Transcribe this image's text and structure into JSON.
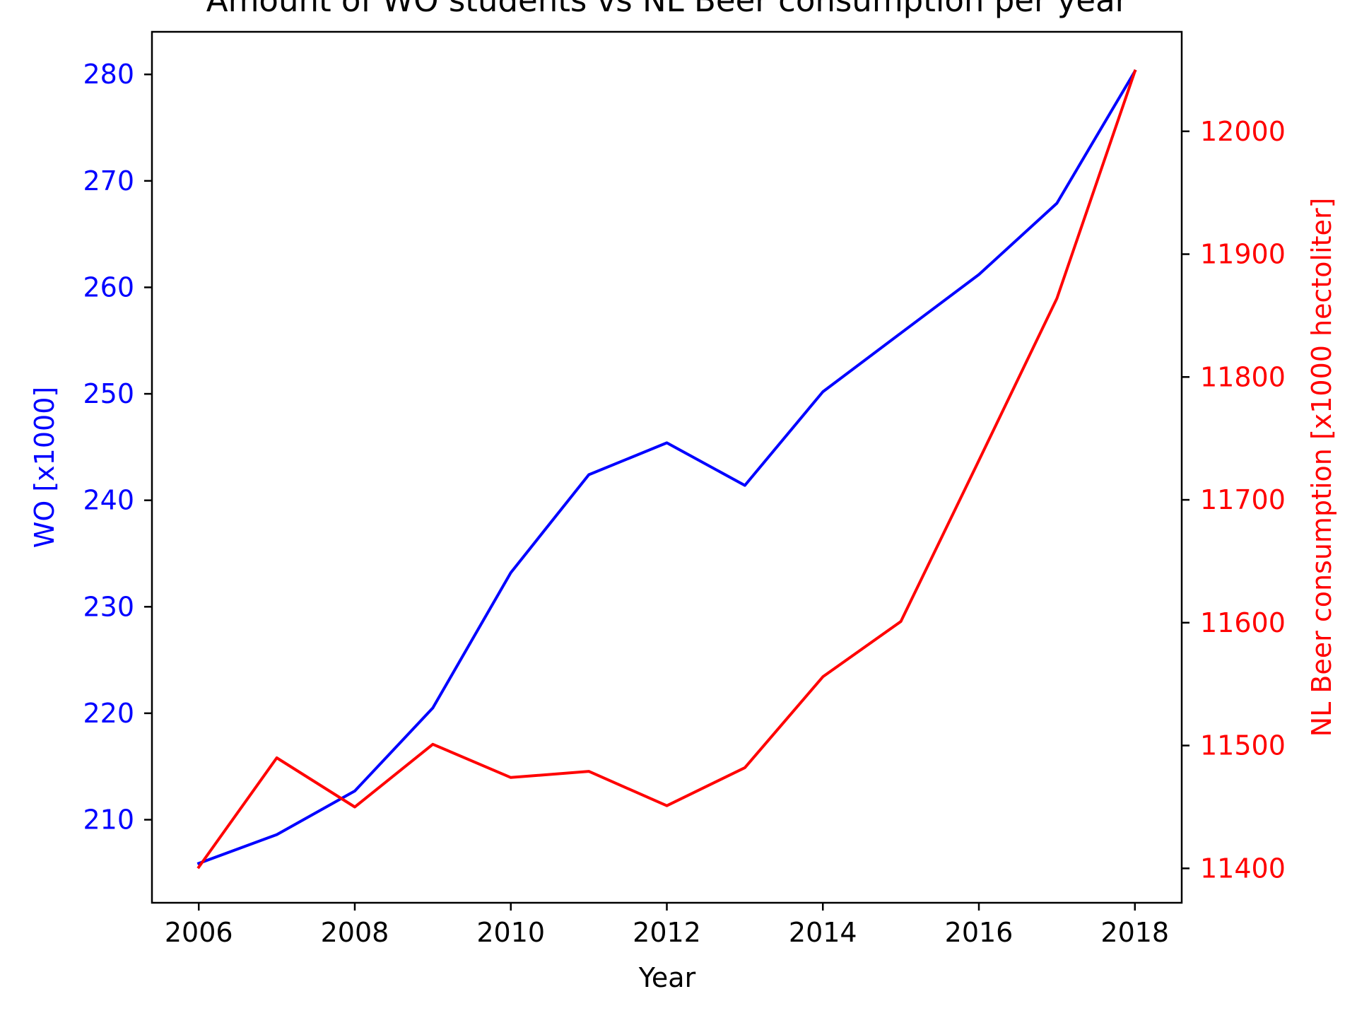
{
  "chart_data": {
    "type": "line",
    "title": "Amount of WO students vs NL Beer consumption per year",
    "xlabel": "Year",
    "ylabel_left": "WO [x1000]",
    "ylabel_right": "NL Beer consumption [x1000 hectoliter]",
    "x": [
      2006,
      2007,
      2008,
      2009,
      2010,
      2011,
      2012,
      2013,
      2014,
      2015,
      2016,
      2017,
      2018
    ],
    "x_ticks": [
      "2006",
      "2008",
      "2010",
      "2012",
      "2014",
      "2016",
      "2018"
    ],
    "y_left_ticks": [
      "210",
      "220",
      "230",
      "240",
      "250",
      "260",
      "270",
      "280"
    ],
    "y_right_ticks": [
      "11400",
      "11500",
      "11600",
      "11700",
      "11800",
      "11900",
      "12000"
    ],
    "xlim": [
      2005.4,
      2018.6
    ],
    "ylim_left": [
      202.2,
      284.0
    ],
    "ylim_right": [
      11372,
      12081
    ],
    "grid": false,
    "series": [
      {
        "name": "WO [x1000]",
        "axis": "left",
        "color": "#0000ff",
        "values": [
          205.9,
          208.6,
          212.7,
          220.5,
          233.2,
          242.4,
          245.4,
          241.4,
          250.2,
          255.7,
          261.2,
          267.9,
          280.3
        ]
      },
      {
        "name": "NL Beer consumption [x1000 hectoliter]",
        "axis": "right",
        "color": "#ff0000",
        "values": [
          11401,
          11490,
          11450,
          11501,
          11474,
          11479,
          11451,
          11482,
          11556,
          11601,
          11732,
          11864,
          12049
        ]
      }
    ]
  },
  "colors": {
    "left_axis": "#0000ff",
    "right_axis": "#ff0000",
    "frame": "#000000"
  }
}
